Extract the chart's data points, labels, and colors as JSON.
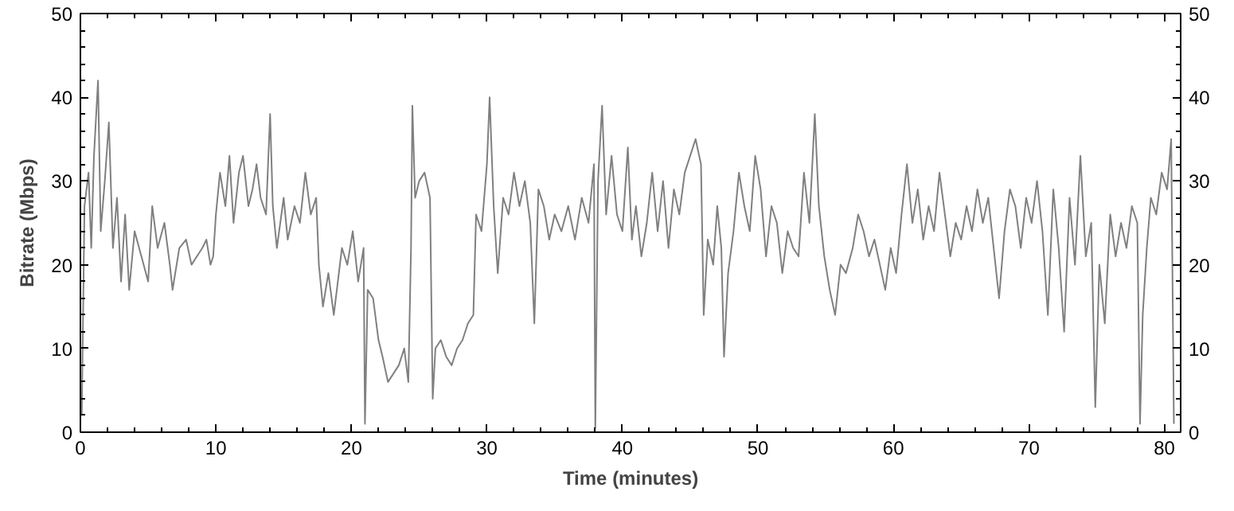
{
  "chart_data": {
    "type": "line",
    "xlabel": "Time (minutes)",
    "ylabel": "Bitrate (Mbps)",
    "xlim": [
      0,
      81.2
    ],
    "ylim": [
      0,
      50
    ],
    "xticks": [
      0,
      10,
      20,
      30,
      40,
      50,
      60,
      70,
      80
    ],
    "yticks": [
      0,
      10,
      20,
      30,
      40,
      50
    ],
    "y2lim": [
      0,
      50
    ],
    "y2ticks": [
      0,
      10,
      20,
      30,
      40,
      50
    ],
    "color": "#808080",
    "x": [
      0.1,
      0.3,
      0.6,
      0.8,
      1.0,
      1.3,
      1.5,
      1.8,
      2.1,
      2.4,
      2.7,
      3.0,
      3.3,
      3.6,
      4.0,
      4.5,
      5.0,
      5.3,
      5.7,
      6.2,
      6.6,
      6.8,
      7.3,
      7.8,
      8.2,
      8.6,
      9.0,
      9.3,
      9.6,
      9.8,
      10.0,
      10.3,
      10.7,
      11.0,
      11.3,
      11.7,
      12.0,
      12.4,
      12.7,
      13.0,
      13.3,
      13.7,
      14.0,
      14.2,
      14.5,
      15.0,
      15.3,
      15.8,
      16.2,
      16.6,
      17.0,
      17.4,
      17.6,
      17.9,
      18.3,
      18.7,
      19.0,
      19.3,
      19.7,
      20.1,
      20.5,
      20.9,
      21.0,
      21.2,
      21.6,
      22.0,
      22.3,
      22.7,
      23.1,
      23.5,
      23.9,
      24.2,
      24.4,
      24.5,
      24.7,
      25.0,
      25.4,
      25.8,
      26.0,
      26.2,
      26.6,
      27.0,
      27.4,
      27.8,
      28.2,
      28.6,
      29.0,
      29.2,
      29.6,
      30.0,
      30.2,
      30.5,
      30.8,
      31.2,
      31.6,
      32.0,
      32.4,
      32.8,
      33.2,
      33.5,
      33.8,
      34.2,
      34.6,
      35.0,
      35.5,
      36.0,
      36.5,
      37.0,
      37.5,
      37.9,
      38.0,
      38.2,
      38.5,
      38.8,
      39.2,
      39.6,
      40.0,
      40.4,
      40.7,
      41.0,
      41.4,
      41.8,
      42.2,
      42.6,
      43.0,
      43.4,
      43.8,
      44.2,
      44.6,
      45.0,
      45.4,
      45.8,
      46.0,
      46.3,
      46.7,
      47.0,
      47.3,
      47.5,
      47.8,
      48.2,
      48.6,
      49.0,
      49.4,
      49.8,
      50.2,
      50.6,
      51.0,
      51.4,
      51.8,
      52.2,
      52.6,
      53.0,
      53.4,
      53.8,
      54.2,
      54.5,
      54.9,
      55.3,
      55.7,
      56.1,
      56.5,
      57.0,
      57.4,
      57.8,
      58.2,
      58.6,
      59.0,
      59.4,
      59.8,
      60.2,
      60.6,
      61.0,
      61.4,
      61.8,
      62.2,
      62.6,
      63.0,
      63.4,
      63.8,
      64.2,
      64.6,
      65.0,
      65.4,
      65.8,
      66.2,
      66.6,
      67.0,
      67.4,
      67.8,
      68.2,
      68.6,
      69.0,
      69.4,
      69.8,
      70.2,
      70.6,
      71.0,
      71.4,
      71.8,
      72.2,
      72.6,
      73.0,
      73.4,
      73.8,
      74.2,
      74.6,
      74.9,
      75.2,
      75.6,
      76.0,
      76.4,
      76.8,
      77.2,
      77.6,
      78.0,
      78.2,
      78.4,
      78.7,
      79.0,
      79.4,
      79.8,
      80.2,
      80.5,
      80.7
    ],
    "values": [
      2,
      27,
      31,
      22,
      33,
      42,
      24,
      30,
      37,
      22,
      28,
      18,
      26,
      17,
      24,
      21,
      18,
      27,
      22,
      25,
      20,
      17,
      22,
      23,
      20,
      21,
      22,
      23,
      20,
      21,
      26,
      31,
      27,
      33,
      25,
      31,
      33,
      27,
      29,
      32,
      28,
      26,
      38,
      27,
      22,
      28,
      23,
      27,
      25,
      31,
      26,
      28,
      20,
      15,
      19,
      14,
      18,
      22,
      20,
      24,
      18,
      22,
      1,
      17,
      16,
      11,
      9,
      6,
      7,
      8,
      10,
      6,
      22,
      39,
      28,
      30,
      31,
      28,
      4,
      10,
      11,
      9,
      8,
      10,
      11,
      13,
      14,
      26,
      24,
      32,
      40,
      27,
      19,
      28,
      26,
      31,
      27,
      30,
      25,
      13,
      29,
      27,
      23,
      26,
      24,
      27,
      23,
      28,
      25,
      32,
      0.5,
      30,
      39,
      26,
      33,
      26,
      24,
      34,
      23,
      27,
      21,
      25,
      31,
      24,
      30,
      22,
      29,
      26,
      31,
      33,
      35,
      32,
      14,
      23,
      20,
      27,
      22,
      9,
      19,
      24,
      31,
      27,
      24,
      33,
      29,
      21,
      27,
      25,
      19,
      24,
      22,
      21,
      31,
      25,
      38,
      27,
      21,
      17,
      14,
      20,
      19,
      22,
      26,
      24,
      21,
      23,
      20,
      17,
      22,
      19,
      26,
      32,
      25,
      29,
      23,
      27,
      24,
      31,
      26,
      21,
      25,
      23,
      27,
      24,
      29,
      25,
      28,
      22,
      16,
      24,
      29,
      27,
      22,
      28,
      25,
      30,
      24,
      14,
      29,
      22,
      12,
      28,
      20,
      33,
      21,
      25,
      3,
      20,
      13,
      26,
      21,
      25,
      22,
      27,
      25,
      1,
      14,
      22,
      28,
      26,
      31,
      29,
      35,
      1
    ]
  }
}
